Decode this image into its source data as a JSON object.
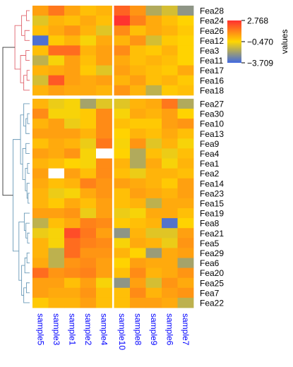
{
  "chart_data": {
    "type": "heatmap",
    "legend": {
      "title": "values",
      "ticks": [
        "2.768",
        "−0.470",
        "−3.709"
      ],
      "max": 2.768,
      "mid": -0.47,
      "min": -3.709,
      "colors": [
        "#4169e1",
        "#ffd700",
        "#ff3030"
      ],
      "placement": "right"
    },
    "columns": [
      "sample5",
      "sample3",
      "sample1",
      "sample2",
      "sample4",
      "sample10",
      "sample8",
      "sample9",
      "sample6",
      "sample7"
    ],
    "column_split_after": 5,
    "row_groups": [
      {
        "name": "",
        "dendrogram_color": "#e0636d",
        "rows": [
          "Fea28",
          "Fea24",
          "Fea26",
          "Fea12",
          "Fea3",
          "Fea11",
          "Fea17",
          "Fea16",
          "Fea18"
        ]
      },
      {
        "name": "",
        "dendrogram_color": "#6a9ab8",
        "rows": [
          "Fea27",
          "Fea30",
          "Fea10",
          "Fea13",
          "Fea9",
          "Fea4",
          "Fea1",
          "Fea2",
          "Fea14",
          "Fea23",
          "Fea15",
          "Fea19",
          "Fea8",
          "Fea21",
          "Fea5",
          "Fea29",
          "Fea6",
          "Fea20",
          "Fea25",
          "Fea7",
          "Fea22"
        ]
      }
    ],
    "values": [
      [
        0.6,
        1.4,
        0.5,
        0.0,
        0.2,
        1.8,
        0.8,
        -1.8,
        -1.2,
        -2.4
      ],
      [
        -1.0,
        0.2,
        0.0,
        0.4,
        0.0,
        2.7,
        1.2,
        0.4,
        0.0,
        -0.4
      ],
      [
        0.0,
        0.4,
        0.8,
        0.2,
        -1.0,
        1.0,
        0.0,
        0.4,
        0.2,
        -0.2
      ],
      [
        -3.5,
        -0.2,
        0.2,
        -0.6,
        0.4,
        0.2,
        0.8,
        -1.2,
        -0.2,
        -0.4
      ],
      [
        0.0,
        1.6,
        1.6,
        0.2,
        0.6,
        1.0,
        0.0,
        -0.2,
        0.2,
        -0.4
      ],
      [
        -1.6,
        -0.6,
        0.6,
        0.0,
        0.6,
        0.4,
        0.0,
        0.2,
        0.0,
        -0.4
      ],
      [
        0.2,
        0.4,
        0.6,
        -0.2,
        -1.0,
        0.6,
        0.2,
        0.0,
        -0.2,
        0.4
      ],
      [
        -1.2,
        2.0,
        0.6,
        0.4,
        0.6,
        0.2,
        0.6,
        0.0,
        0.2,
        -0.2
      ],
      [
        0.2,
        0.6,
        0.4,
        0.4,
        0.2,
        0.8,
        0.2,
        -1.6,
        -0.2,
        0.0
      ],
      [
        0.2,
        -0.8,
        -0.6,
        -2.0,
        -1.0,
        -1.0,
        0.2,
        0.4,
        1.4,
        -1.8
      ],
      [
        1.0,
        -0.6,
        -0.6,
        -0.2,
        1.0,
        -0.6,
        0.4,
        0.2,
        0.6,
        -0.4
      ],
      [
        0.2,
        0.6,
        -0.8,
        -0.2,
        1.0,
        0.0,
        -0.2,
        -0.2,
        0.6,
        0.8
      ],
      [
        0.6,
        0.6,
        0.6,
        0.2,
        1.0,
        -0.4,
        0.2,
        0.0,
        0.4,
        0.0
      ],
      [
        0.0,
        0.4,
        0.2,
        -0.8,
        1.4,
        -0.6,
        0.8,
        -1.0,
        0.2,
        -0.6
      ],
      [
        0.6,
        0.4,
        0.8,
        -0.6,
        null,
        -0.4,
        -1.8,
        0.0,
        -0.8,
        0.0
      ],
      [
        0.2,
        0.0,
        -0.4,
        -0.6,
        1.0,
        0.2,
        -1.8,
        0.4,
        -0.6,
        0.2
      ],
      [
        0.6,
        null,
        0.6,
        0.0,
        1.0,
        0.0,
        -0.8,
        0.2,
        0.2,
        0.0
      ],
      [
        0.4,
        0.0,
        0.2,
        1.2,
        0.8,
        0.6,
        0.4,
        0.2,
        -0.2,
        0.6
      ],
      [
        0.2,
        -0.8,
        -0.6,
        0.4,
        0.8,
        0.0,
        0.6,
        0.4,
        0.2,
        0.6
      ],
      [
        0.2,
        -0.2,
        0.4,
        0.0,
        0.6,
        0.0,
        0.2,
        -1.6,
        0.4,
        0.4
      ],
      [
        0.6,
        0.6,
        0.8,
        -0.8,
        0.6,
        -0.8,
        -0.6,
        0.4,
        0.4,
        0.0
      ],
      [
        -1.6,
        0.0,
        0.4,
        1.2,
        1.0,
        -0.2,
        0.0,
        0.2,
        -3.4,
        -0.4
      ],
      [
        -0.8,
        -0.6,
        2.2,
        1.4,
        0.6,
        -2.4,
        0.2,
        -1.0,
        -1.0,
        0.6
      ],
      [
        0.2,
        -0.6,
        1.6,
        1.2,
        1.0,
        -0.6,
        0.4,
        0.2,
        -0.8,
        0.8
      ],
      [
        0.2,
        -1.6,
        1.6,
        0.8,
        0.8,
        0.2,
        -0.4,
        -2.2,
        0.4,
        0.6
      ],
      [
        0.4,
        -1.6,
        0.8,
        1.0,
        0.6,
        -0.4,
        0.6,
        0.4,
        0.4,
        -2.0
      ],
      [
        1.6,
        0.8,
        1.0,
        1.2,
        0.6,
        0.0,
        1.0,
        0.2,
        0.4,
        0.8
      ],
      [
        0.6,
        0.6,
        0.0,
        0.6,
        -0.6,
        -2.4,
        0.6,
        -1.2,
        0.8,
        0.4
      ],
      [
        0.6,
        0.4,
        0.4,
        0.8,
        0.0,
        0.0,
        1.0,
        0.2,
        0.6,
        0.8
      ],
      [
        -0.2,
        0.2,
        0.2,
        0.6,
        0.0,
        0.0,
        0.6,
        0.6,
        0.4,
        -1.6
      ]
    ],
    "missing_value_color": "#ffffff",
    "grid": false
  }
}
